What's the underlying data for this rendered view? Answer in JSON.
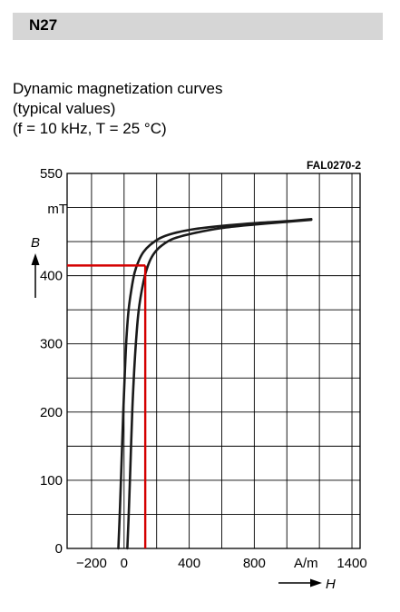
{
  "header": {
    "title": "N27"
  },
  "chart_title": {
    "line1": "Dynamic magnetization curves",
    "line2": "(typical values)",
    "line3": "(f = 10 kHz, T = 25 °C)"
  },
  "figure_ref": "FAL0270-2",
  "colors": {
    "curve": "#1a1a1a",
    "marker": "#d40000",
    "grid": "#000000",
    "header_bg": "#d6d6d6"
  },
  "chart_data": {
    "type": "line",
    "title": "Dynamic magnetization curves",
    "xlabel": "H",
    "xunit": "A/m",
    "ylabel": "B",
    "yunit": "mT",
    "xlim": [
      -350,
      1450
    ],
    "ylim": [
      0,
      550
    ],
    "x_ticks": [
      {
        "value": -200,
        "label": "−200"
      },
      {
        "value": 0,
        "label": "0"
      },
      {
        "value": 400,
        "label": "400"
      },
      {
        "value": 800,
        "label": "800"
      },
      {
        "value": 1400,
        "label": "1400"
      }
    ],
    "y_ticks": [
      {
        "value": 0,
        "label": "0"
      },
      {
        "value": 100,
        "label": "100"
      },
      {
        "value": 200,
        "label": "200"
      },
      {
        "value": 300,
        "label": "300"
      },
      {
        "value": 400,
        "label": "400"
      },
      {
        "value": 550,
        "label": "550"
      }
    ],
    "grid": true,
    "series": [
      {
        "x": [
          -35,
          -25,
          -15,
          -5,
          5,
          15,
          28,
          45,
          65,
          90,
          120,
          160,
          220,
          300,
          420,
          600,
          800,
          1000,
          1150
        ],
        "y": [
          0,
          60,
          130,
          200,
          260,
          310,
          350,
          380,
          405,
          422,
          435,
          445,
          455,
          462,
          468,
          473,
          477,
          480,
          483
        ]
      },
      {
        "x": [
          20,
          30,
          40,
          50,
          62,
          75,
          90,
          110,
          130,
          155,
          185,
          230,
          300,
          420,
          600,
          800,
          1000,
          1150
        ],
        "y": [
          0,
          60,
          130,
          200,
          260,
          310,
          350,
          380,
          402,
          420,
          433,
          444,
          454,
          462,
          470,
          475,
          479,
          482
        ]
      }
    ],
    "reference_lines": {
      "x": 130,
      "y": 415
    }
  }
}
